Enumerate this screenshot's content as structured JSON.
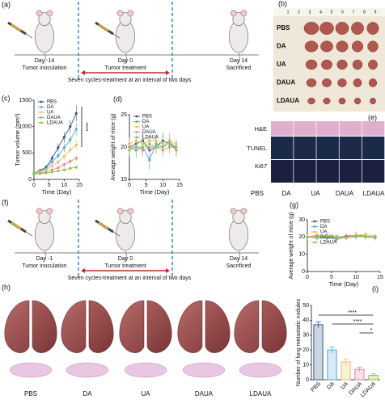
{
  "timeline_top": {
    "label": "(a)",
    "events": [
      {
        "day": "Day -14",
        "text": "Tumor inoculation"
      },
      {
        "day": "Day 0",
        "text": "Tumor treatment"
      },
      {
        "day": "Day 14",
        "text": "Sacrificed"
      }
    ],
    "note": "Seven cycles-treatment at an interval of two days"
  },
  "timeline_bottom": {
    "label": "(f)",
    "events": [
      {
        "day": "Day -1",
        "text": "Tumor inoculation"
      },
      {
        "day": "Day 0",
        "text": "Tumor treatment"
      },
      {
        "day": "Day 14",
        "text": "Sacrificed"
      }
    ],
    "note": "Seven cycles-treatment at an interval of two days"
  },
  "tumor_photo": {
    "label": "(b)",
    "ruler": [
      "1",
      "2",
      "3",
      "4",
      "5",
      "6",
      "7",
      "8",
      "9"
    ],
    "groups": [
      "PBS",
      "DA",
      "UA",
      "DAUA",
      "LDAUA"
    ]
  },
  "staining": {
    "label": "(e)",
    "rows": [
      "H&E",
      "TUNEL",
      "Ki67"
    ],
    "columns": [
      "PBS",
      "DA",
      "UA",
      "DAUA",
      "LDAUA"
    ]
  },
  "lung_photo": {
    "label": "(h)",
    "groups": [
      "PBS",
      "DA",
      "UA",
      "DAUA",
      "LDAUA"
    ]
  },
  "chart_data": [
    {
      "type": "line",
      "label": "(c)",
      "xlabel": "Time (Day)",
      "ylabel": "Tumor volume (mm³)",
      "annotation": "****",
      "x": [
        0,
        2,
        4,
        6,
        8,
        10,
        12,
        14
      ],
      "xlim": [
        0,
        15
      ],
      "xticks": [
        0,
        5,
        10,
        15
      ],
      "ylim": [
        0,
        1500
      ],
      "yticks": [
        0,
        500,
        1000,
        1500
      ],
      "series": [
        {
          "name": "PBS",
          "color": "#2c5a85",
          "values": [
            120,
            170,
            230,
            400,
            600,
            800,
            1000,
            1250
          ],
          "errors": [
            20,
            30,
            40,
            60,
            80,
            100,
            120,
            150
          ]
        },
        {
          "name": "DA",
          "color": "#5aa6d2",
          "values": [
            120,
            160,
            200,
            330,
            450,
            600,
            750,
            950
          ],
          "errors": [
            20,
            25,
            35,
            50,
            60,
            80,
            90,
            120
          ]
        },
        {
          "name": "UA",
          "color": "#e6c35a",
          "values": [
            110,
            140,
            180,
            250,
            330,
            430,
            560,
            650
          ],
          "errors": [
            15,
            20,
            30,
            40,
            50,
            60,
            70,
            90
          ]
        },
        {
          "name": "DAUA",
          "color": "#e884a0",
          "values": [
            100,
            120,
            140,
            180,
            220,
            280,
            340,
            400
          ],
          "errors": [
            15,
            15,
            20,
            25,
            30,
            40,
            45,
            50
          ]
        },
        {
          "name": "LDAUA",
          "color": "#8cc63f",
          "values": [
            100,
            110,
            120,
            140,
            160,
            180,
            210,
            230
          ],
          "errors": [
            10,
            12,
            15,
            18,
            20,
            25,
            30,
            35
          ]
        }
      ]
    },
    {
      "type": "line",
      "label": "(d)",
      "xlabel": "Time (Day)",
      "ylabel": "Average weight of mice (g)",
      "x": [
        0,
        2,
        4,
        6,
        8,
        10,
        12,
        14
      ],
      "xlim": [
        0,
        15
      ],
      "xticks": [
        0,
        5,
        10,
        15
      ],
      "ylim": [
        15,
        25
      ],
      "yticks": [
        15,
        20,
        25
      ],
      "series": [
        {
          "name": "PBS",
          "color": "#2c5a85",
          "values": [
            20,
            20.5,
            21,
            19.5,
            20,
            21,
            20.5,
            20
          ],
          "errors": [
            1,
            1,
            1.2,
            1,
            1,
            1.2,
            1,
            1
          ]
        },
        {
          "name": "DA",
          "color": "#5aa6d2",
          "values": [
            20,
            19.5,
            20,
            18,
            20.5,
            20,
            21,
            19.5
          ],
          "errors": [
            1,
            1.2,
            1,
            1.5,
            1,
            1,
            1.2,
            1
          ]
        },
        {
          "name": "UA",
          "color": "#e6c35a",
          "values": [
            20.5,
            21,
            20.5,
            21,
            21,
            20.5,
            21,
            20.5
          ],
          "errors": [
            1,
            1,
            1,
            1,
            1,
            1,
            1,
            1
          ]
        },
        {
          "name": "DAUA",
          "color": "#e884a0",
          "values": [
            20,
            20,
            19.5,
            20,
            20,
            19.5,
            20,
            20
          ],
          "errors": [
            1,
            1,
            1,
            1,
            1,
            1,
            1,
            1
          ]
        },
        {
          "name": "LDAUA",
          "color": "#8cc63f",
          "values": [
            19.5,
            20,
            20,
            20.5,
            20,
            20,
            20.5,
            19.5
          ],
          "errors": [
            1,
            1,
            1,
            1,
            1,
            1,
            1,
            1
          ]
        }
      ]
    },
    {
      "type": "line",
      "label": "(g)",
      "xlabel": "Time (Day)",
      "ylabel": "Average weight of mice (g)",
      "x": [
        0,
        2,
        4,
        6,
        8,
        10,
        12,
        14
      ],
      "xlim": [
        0,
        15
      ],
      "xticks": [
        0,
        5,
        10,
        15
      ],
      "ylim": [
        0,
        30
      ],
      "yticks": [
        0,
        10,
        20,
        30
      ],
      "series": [
        {
          "name": "PBS",
          "color": "#2c5a85",
          "values": [
            20,
            20,
            19.5,
            20,
            20.5,
            21,
            20.5,
            20
          ],
          "errors": [
            1.5,
            1.5,
            1.5,
            1.5,
            1.5,
            2,
            1.5,
            1.5
          ]
        },
        {
          "name": "DA",
          "color": "#5aa6d2",
          "values": [
            20,
            19.5,
            20,
            18.5,
            20,
            21,
            20,
            20
          ],
          "errors": [
            1.5,
            1.5,
            1.5,
            2,
            1.5,
            2,
            1.5,
            1.5
          ]
        },
        {
          "name": "UA",
          "color": "#e6c35a",
          "values": [
            20,
            20.5,
            21,
            20.5,
            20,
            21,
            21.5,
            20.5
          ],
          "errors": [
            1.5,
            1.5,
            1.5,
            1.5,
            1.5,
            1.5,
            1.5,
            1.5
          ]
        },
        {
          "name": "DAUA",
          "color": "#e884a0",
          "values": [
            20,
            21,
            20,
            19.5,
            20,
            20.5,
            20,
            19.5
          ],
          "errors": [
            1.5,
            1.5,
            1.5,
            1.5,
            1.5,
            1.5,
            1.5,
            1.5
          ]
        },
        {
          "name": "LDAUA",
          "color": "#8cc63f",
          "values": [
            20,
            20,
            20.5,
            20,
            19.5,
            20,
            20.5,
            20
          ],
          "errors": [
            1.5,
            1.5,
            1.5,
            1.5,
            1.5,
            1.5,
            1.5,
            1.5
          ]
        }
      ]
    },
    {
      "type": "bar",
      "label": "(i)",
      "ylabel": "Number of lung metastatic nodules",
      "categories": [
        "PBS",
        "DA",
        "UA",
        "DAUA",
        "LDAUA"
      ],
      "values": [
        37,
        20,
        12,
        7,
        3
      ],
      "errors": [
        2,
        2,
        2,
        1.5,
        1
      ],
      "colors": [
        "#2c5a85",
        "#5aa6d2",
        "#e6c35a",
        "#e884a0",
        "#8cc63f"
      ],
      "ylim": [
        0,
        50
      ],
      "yticks": [
        0,
        10,
        20,
        30,
        40,
        50
      ],
      "annotations": [
        "****",
        "****",
        "*"
      ]
    }
  ]
}
